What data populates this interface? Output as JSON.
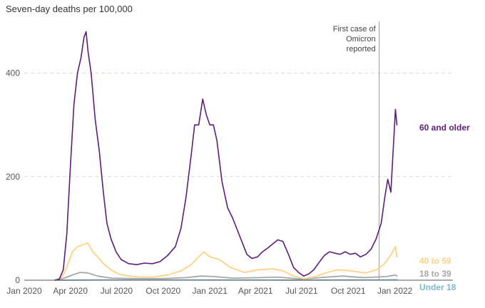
{
  "chart_data": {
    "type": "line",
    "title": "Seven-day deaths per 100,000",
    "xlabel": "",
    "ylabel": "",
    "ylim": [
      0,
      500
    ],
    "xlim": [
      "2020-01-01",
      "2022-01-31"
    ],
    "grid": true,
    "x_ticks": [
      {
        "date": "2020-01-01",
        "label": "Jan 2020"
      },
      {
        "date": "2020-04-01",
        "label": "Apr 2020"
      },
      {
        "date": "2020-07-01",
        "label": "Jul 2020"
      },
      {
        "date": "2020-10-01",
        "label": "Oct 2020"
      },
      {
        "date": "2021-01-01",
        "label": "Jan 2021"
      },
      {
        "date": "2021-04-01",
        "label": "Apr 2021"
      },
      {
        "date": "2021-07-01",
        "label": "Jul 2021"
      },
      {
        "date": "2021-10-01",
        "label": "Oct 2021"
      },
      {
        "date": "2022-01-01",
        "label": "Jan 2022"
      }
    ],
    "y_ticks": [
      {
        "value": 0,
        "label": "0"
      },
      {
        "value": 200,
        "label": "200"
      },
      {
        "value": 400,
        "label": "400"
      }
    ],
    "annotations": [
      {
        "date": "2021-12-01",
        "lines": [
          "First case of",
          "Omicron",
          "reported"
        ]
      }
    ],
    "series": [
      {
        "name": "60 and older",
        "color": "#5b1f7a",
        "points": [
          [
            "2020-03-01",
            0
          ],
          [
            "2020-03-10",
            2
          ],
          [
            "2020-03-18",
            20
          ],
          [
            "2020-03-25",
            90
          ],
          [
            "2020-04-01",
            220
          ],
          [
            "2020-04-08",
            340
          ],
          [
            "2020-04-15",
            400
          ],
          [
            "2020-04-22",
            430
          ],
          [
            "2020-04-28",
            470
          ],
          [
            "2020-05-02",
            480
          ],
          [
            "2020-05-06",
            440
          ],
          [
            "2020-05-12",
            400
          ],
          [
            "2020-05-20",
            310
          ],
          [
            "2020-05-28",
            250
          ],
          [
            "2020-06-05",
            170
          ],
          [
            "2020-06-12",
            110
          ],
          [
            "2020-06-20",
            80
          ],
          [
            "2020-06-30",
            55
          ],
          [
            "2020-07-10",
            40
          ],
          [
            "2020-07-25",
            32
          ],
          [
            "2020-08-10",
            30
          ],
          [
            "2020-08-25",
            33
          ],
          [
            "2020-09-10",
            32
          ],
          [
            "2020-09-25",
            36
          ],
          [
            "2020-10-10",
            48
          ],
          [
            "2020-10-25",
            65
          ],
          [
            "2020-11-05",
            100
          ],
          [
            "2020-11-15",
            160
          ],
          [
            "2020-11-25",
            240
          ],
          [
            "2020-12-02",
            300
          ],
          [
            "2020-12-10",
            300
          ],
          [
            "2020-12-18",
            350
          ],
          [
            "2020-12-25",
            320
          ],
          [
            "2021-01-01",
            300
          ],
          [
            "2021-01-08",
            300
          ],
          [
            "2021-01-15",
            270
          ],
          [
            "2021-01-25",
            190
          ],
          [
            "2021-02-05",
            140
          ],
          [
            "2021-02-15",
            120
          ],
          [
            "2021-02-25",
            95
          ],
          [
            "2021-03-05",
            75
          ],
          [
            "2021-03-15",
            50
          ],
          [
            "2021-03-25",
            42
          ],
          [
            "2021-04-05",
            45
          ],
          [
            "2021-04-15",
            55
          ],
          [
            "2021-04-25",
            62
          ],
          [
            "2021-05-05",
            70
          ],
          [
            "2021-05-15",
            78
          ],
          [
            "2021-05-25",
            75
          ],
          [
            "2021-06-05",
            50
          ],
          [
            "2021-06-15",
            25
          ],
          [
            "2021-06-25",
            15
          ],
          [
            "2021-07-05",
            8
          ],
          [
            "2021-07-15",
            12
          ],
          [
            "2021-07-25",
            20
          ],
          [
            "2021-08-05",
            35
          ],
          [
            "2021-08-15",
            48
          ],
          [
            "2021-08-25",
            55
          ],
          [
            "2021-09-05",
            52
          ],
          [
            "2021-09-15",
            50
          ],
          [
            "2021-09-25",
            55
          ],
          [
            "2021-10-05",
            50
          ],
          [
            "2021-10-15",
            52
          ],
          [
            "2021-10-25",
            45
          ],
          [
            "2021-11-05",
            50
          ],
          [
            "2021-11-15",
            60
          ],
          [
            "2021-11-25",
            80
          ],
          [
            "2021-12-05",
            110
          ],
          [
            "2021-12-12",
            160
          ],
          [
            "2021-12-18",
            195
          ],
          [
            "2021-12-24",
            170
          ],
          [
            "2021-12-28",
            240
          ],
          [
            "2022-01-02",
            330
          ],
          [
            "2022-01-05",
            300
          ]
        ]
      },
      {
        "name": "40 to 59",
        "color": "#ffd28a",
        "points": [
          [
            "2020-03-01",
            0
          ],
          [
            "2020-03-15",
            5
          ],
          [
            "2020-03-25",
            25
          ],
          [
            "2020-04-05",
            55
          ],
          [
            "2020-04-15",
            65
          ],
          [
            "2020-04-25",
            68
          ],
          [
            "2020-05-05",
            72
          ],
          [
            "2020-05-15",
            55
          ],
          [
            "2020-05-25",
            45
          ],
          [
            "2020-06-05",
            32
          ],
          [
            "2020-06-20",
            20
          ],
          [
            "2020-07-05",
            12
          ],
          [
            "2020-07-25",
            8
          ],
          [
            "2020-08-15",
            6
          ],
          [
            "2020-09-10",
            6
          ],
          [
            "2020-10-10",
            10
          ],
          [
            "2020-11-05",
            18
          ],
          [
            "2020-11-25",
            30
          ],
          [
            "2020-12-10",
            45
          ],
          [
            "2020-12-20",
            55
          ],
          [
            "2021-01-01",
            45
          ],
          [
            "2021-01-20",
            40
          ],
          [
            "2021-02-10",
            25
          ],
          [
            "2021-03-10",
            15
          ],
          [
            "2021-04-05",
            20
          ],
          [
            "2021-05-05",
            22
          ],
          [
            "2021-05-25",
            18
          ],
          [
            "2021-06-15",
            8
          ],
          [
            "2021-07-05",
            3
          ],
          [
            "2021-07-25",
            6
          ],
          [
            "2021-08-20",
            15
          ],
          [
            "2021-09-10",
            20
          ],
          [
            "2021-10-05",
            18
          ],
          [
            "2021-11-05",
            14
          ],
          [
            "2021-11-25",
            20
          ],
          [
            "2021-12-10",
            30
          ],
          [
            "2021-12-25",
            50
          ],
          [
            "2022-01-02",
            65
          ],
          [
            "2022-01-05",
            45
          ]
        ]
      },
      {
        "name": "18 to 39",
        "color": "#a6a6a6",
        "points": [
          [
            "2020-03-01",
            0
          ],
          [
            "2020-03-20",
            4
          ],
          [
            "2020-04-05",
            10
          ],
          [
            "2020-04-20",
            15
          ],
          [
            "2020-05-05",
            14
          ],
          [
            "2020-05-25",
            8
          ],
          [
            "2020-06-20",
            4
          ],
          [
            "2020-08-01",
            3
          ],
          [
            "2020-10-01",
            3
          ],
          [
            "2020-11-15",
            5
          ],
          [
            "2020-12-15",
            8
          ],
          [
            "2021-01-10",
            7
          ],
          [
            "2021-02-15",
            4
          ],
          [
            "2021-04-10",
            5
          ],
          [
            "2021-05-15",
            6
          ],
          [
            "2021-07-01",
            2
          ],
          [
            "2021-08-20",
            6
          ],
          [
            "2021-09-20",
            8
          ],
          [
            "2021-11-01",
            5
          ],
          [
            "2021-12-15",
            7
          ],
          [
            "2022-01-02",
            10
          ],
          [
            "2022-01-05",
            8
          ]
        ]
      },
      {
        "name": "Under 18",
        "color": "#7fb8cc",
        "points": [
          [
            "2020-03-01",
            0
          ],
          [
            "2020-06-01",
            0.5
          ],
          [
            "2020-12-01",
            0.5
          ],
          [
            "2021-06-01",
            0.3
          ],
          [
            "2021-12-01",
            0.5
          ],
          [
            "2022-01-05",
            0.8
          ]
        ]
      }
    ]
  }
}
